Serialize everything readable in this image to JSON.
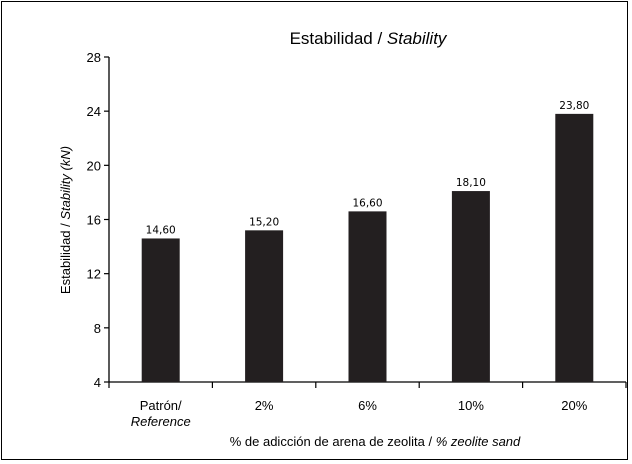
{
  "chart_data": {
    "type": "bar",
    "title": {
      "plain": "Estabilidad / ",
      "italic": "Stability"
    },
    "ylabel": {
      "plain": "Estabilidad / ",
      "italic": "Stability (kN)"
    },
    "xlabel": {
      "plain": "% de adicción de arena de zeolita / ",
      "italic": "% zeolite sand"
    },
    "categories": [
      {
        "line1": "Patrón/",
        "line2": "Reference"
      },
      {
        "line1": "2%",
        "line2": ""
      },
      {
        "line1": "6%",
        "line2": ""
      },
      {
        "line1": "10%",
        "line2": ""
      },
      {
        "line1": "20%",
        "line2": ""
      }
    ],
    "values": [
      14.6,
      15.2,
      16.6,
      18.1,
      23.8
    ],
    "data_labels": [
      "14,60",
      "15,20",
      "16,60",
      "18,10",
      "23,80"
    ],
    "ylim": [
      4,
      28
    ],
    "yticks": [
      4,
      8,
      12,
      16,
      20,
      24,
      28
    ],
    "grid": false,
    "legend": "none",
    "bar_color": "#231f20"
  }
}
